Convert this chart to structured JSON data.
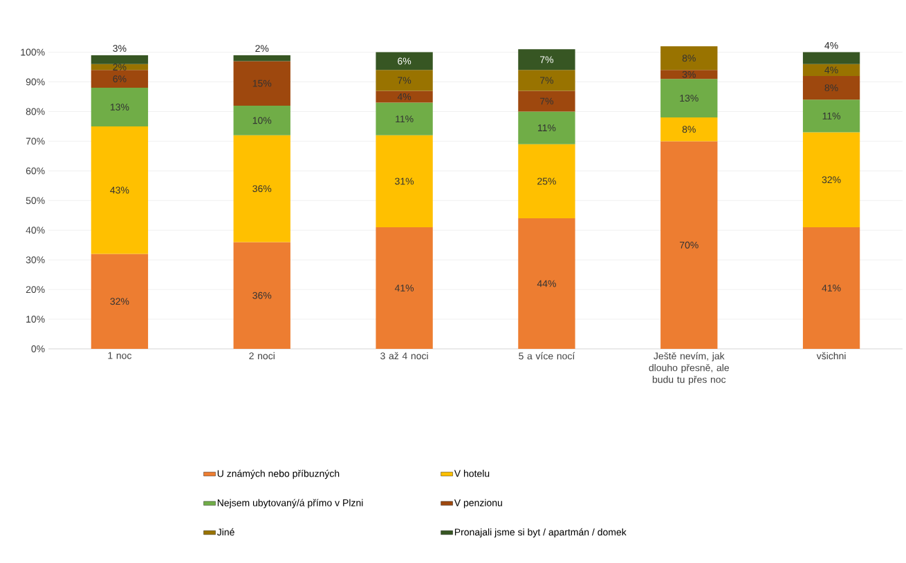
{
  "chart_data": {
    "type": "bar",
    "stacked": true,
    "categories": [
      "1 noc",
      "2 noci",
      "3 až 4 noci",
      "5 a více nocí",
      "Ještě nevím, jak dlouho přesně, ale budu tu přes noc",
      "všichni"
    ],
    "ylim": [
      0,
      102
    ],
    "yticks": [
      {
        "value": 0,
        "label": "0%"
      },
      {
        "value": 10,
        "label": "10%"
      },
      {
        "value": 20,
        "label": "20%"
      },
      {
        "value": 30,
        "label": "30%"
      },
      {
        "value": 40,
        "label": "40%"
      },
      {
        "value": 50,
        "label": "50%"
      },
      {
        "value": 60,
        "label": "60%"
      },
      {
        "value": 70,
        "label": "70%"
      },
      {
        "value": 80,
        "label": "80%"
      },
      {
        "value": 90,
        "label": "90%"
      },
      {
        "value": 100,
        "label": "100%"
      }
    ],
    "grid": "y",
    "legend": "bottom",
    "series": [
      {
        "name": "U známých nebo příbuzných",
        "color": "#ed7d31",
        "values": [
          32,
          36,
          41,
          44,
          70,
          41
        ],
        "value_labels": [
          "32%",
          "36%",
          "41%",
          "44%",
          "70%",
          "41%"
        ]
      },
      {
        "name": "V hotelu",
        "color": "#ffc000",
        "values": [
          43,
          36,
          31,
          25,
          8,
          32
        ],
        "value_labels": [
          "43%",
          "36%",
          "31%",
          "25%",
          "8%",
          "32%"
        ]
      },
      {
        "name": "Nejsem ubytovaný/á přímo v Plzni",
        "color": "#70ad47",
        "values": [
          13,
          10,
          11,
          11,
          13,
          11
        ],
        "value_labels": [
          "13%",
          "10%",
          "11%",
          "11%",
          "13%",
          "11%"
        ]
      },
      {
        "name": "V penzionu",
        "color": "#9e480e",
        "values": [
          6,
          15,
          4,
          7,
          3,
          8
        ],
        "value_labels": [
          "6%",
          "15%",
          "4%",
          "7%",
          "3%",
          "8%"
        ]
      },
      {
        "name": "Jiné",
        "color": "#997300",
        "values": [
          2,
          null,
          7,
          7,
          8,
          4
        ],
        "value_labels": [
          "2%",
          null,
          "7%",
          "7%",
          "8%",
          "4%"
        ]
      },
      {
        "name": "Pronajali jsme si byt / apartmán / domek",
        "color": "#375623",
        "values": [
          3,
          2,
          6,
          7,
          null,
          4
        ],
        "value_labels": [
          "3%",
          "2%",
          "6%",
          "7%",
          null,
          "4%"
        ]
      }
    ]
  }
}
